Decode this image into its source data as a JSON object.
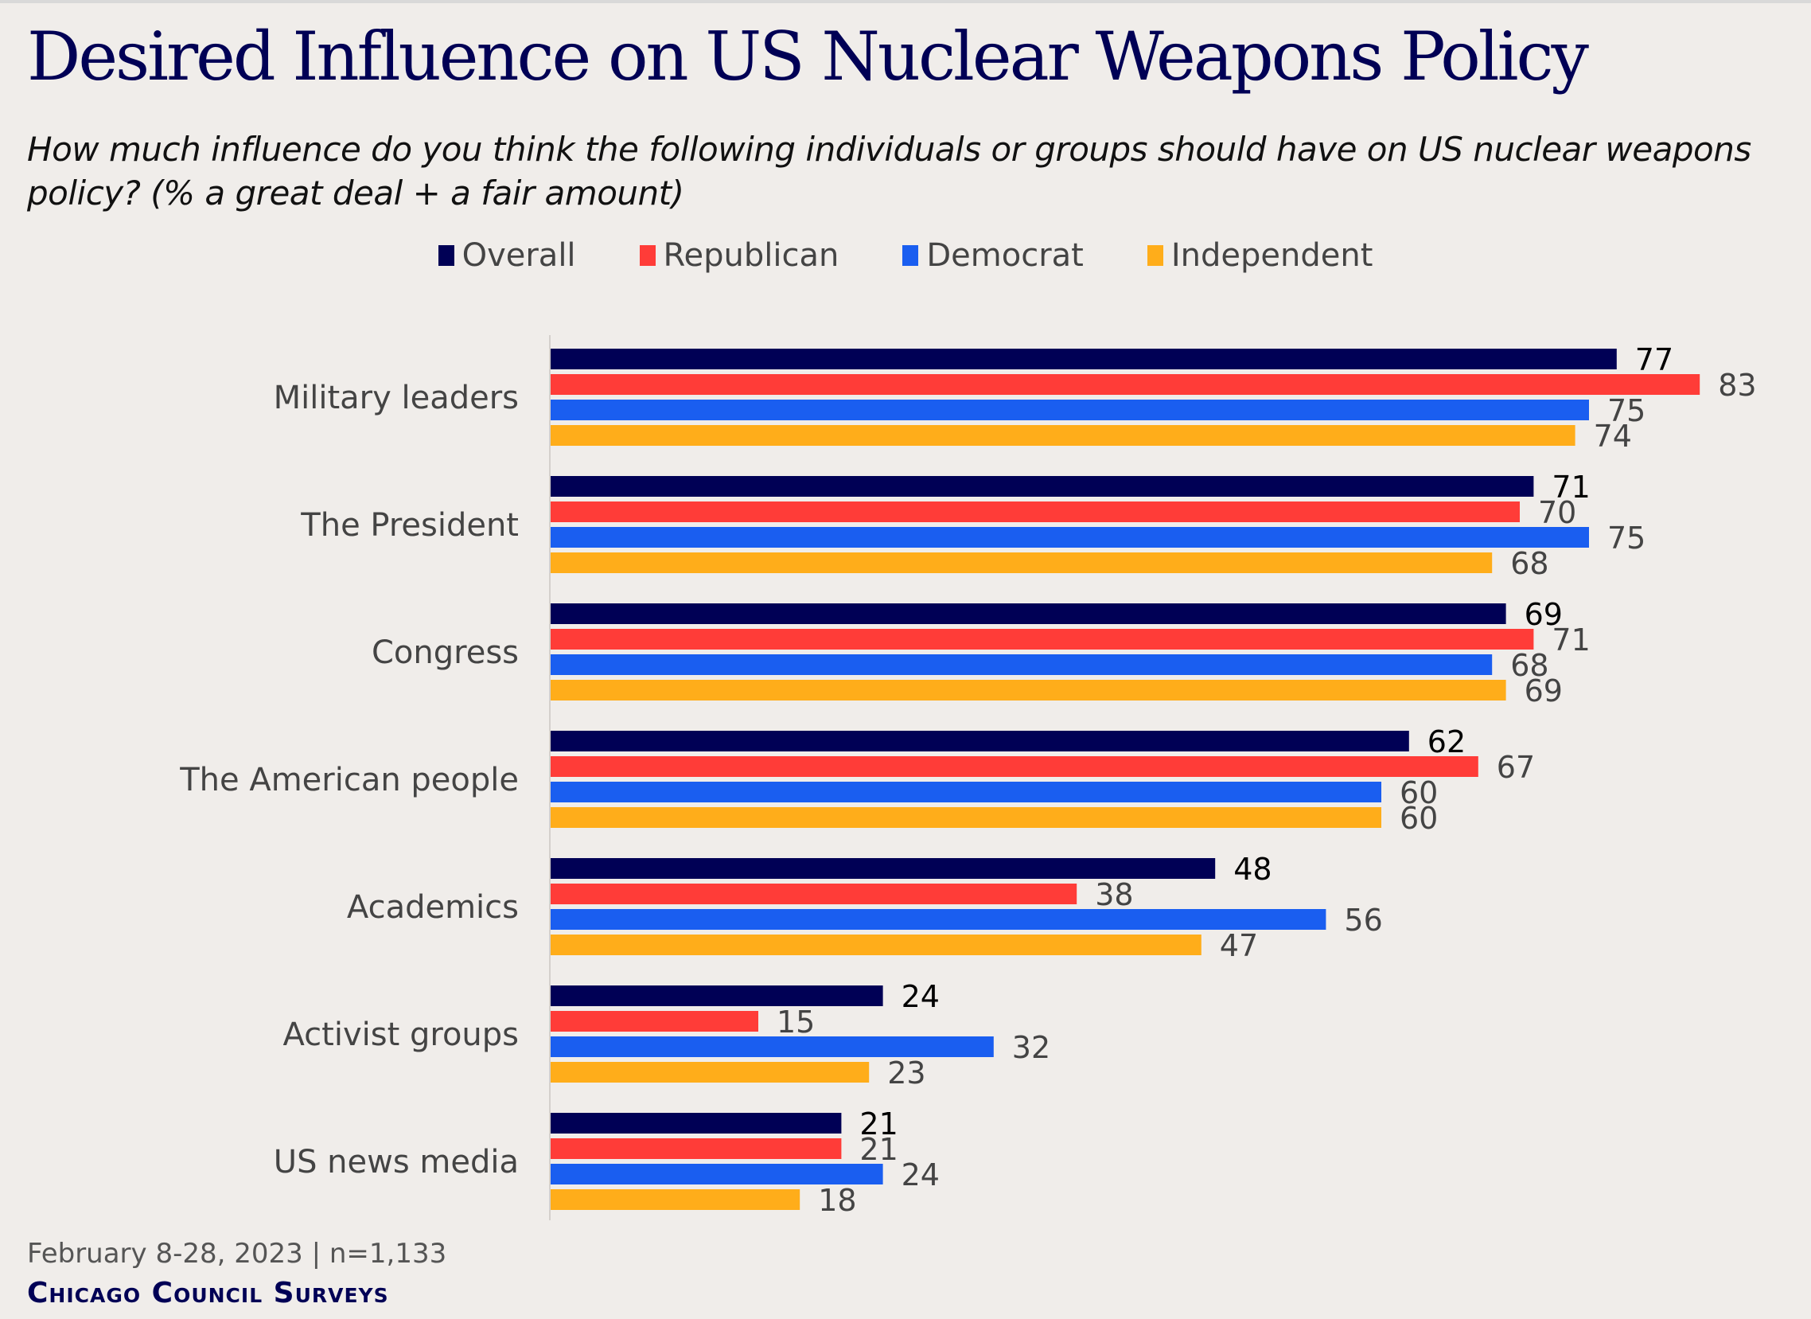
{
  "title": "Desired Influence on US Nuclear Weapons Policy",
  "subtitle": "How much influence do you think the following individuals or groups should have on US nuclear weapons policy? (% a great deal + a fair amount)",
  "footer": {
    "date": "February 8-28, 2023 | n=1,133",
    "brand": "Chicago Council Surveys"
  },
  "chart_data": {
    "type": "bar",
    "orientation": "horizontal",
    "title": "Desired Influence on US Nuclear Weapons Policy",
    "xlim": [
      0,
      100
    ],
    "grid": false,
    "legend_position": "top",
    "categories": [
      "Military leaders",
      "The President",
      "Congress",
      "The American people",
      "Academics",
      "Activist groups",
      "US news media"
    ],
    "series": [
      {
        "name": "Overall",
        "color": "#000055",
        "values": [
          77,
          71,
          69,
          62,
          48,
          24,
          21
        ]
      },
      {
        "name": "Republican",
        "color": "#ff3c38",
        "values": [
          83,
          70,
          71,
          67,
          38,
          15,
          21
        ]
      },
      {
        "name": "Democrat",
        "color": "#1a5ef0",
        "values": [
          75,
          75,
          68,
          60,
          56,
          32,
          24
        ]
      },
      {
        "name": "Independent",
        "color": "#ffad1a",
        "values": [
          74,
          68,
          69,
          60,
          47,
          23,
          18
        ]
      }
    ]
  }
}
